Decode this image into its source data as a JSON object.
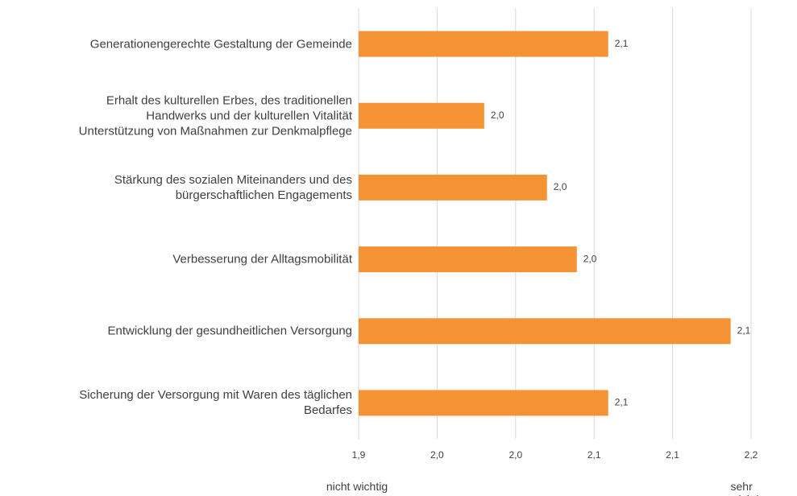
{
  "chart_data": {
    "type": "hbar",
    "categories": [
      "Generationengerechte Gestaltung der Gemeinde",
      "Erhalt des kulturellen Erbes, des traditionellen\nHandwerks und der kulturellen Vitalität\nUnterstützung von Maßnahmen zur Denkmalpflege",
      "Stärkung des sozialen Miteinanders und des\nbürgerschaftlichen Engagements",
      "Verbesserung der Alltagsmobilität",
      "Entwicklung der gesundheitlichen Versorgung",
      "Sicherung der Versorgung mit Waren des täglichen\nBedarfes"
    ],
    "values": [
      2.059,
      1.98,
      2.02,
      2.039,
      2.137,
      2.059
    ],
    "value_labels": [
      "2,1",
      "2,0",
      "2,0",
      "2,0",
      "2,1",
      "2,1"
    ],
    "color": "#f59233",
    "xlim": [
      1.9,
      2.15
    ],
    "xticks": [
      {
        "value": 1.9,
        "label": "1,9"
      },
      {
        "value": 1.95,
        "label": "2,0"
      },
      {
        "value": 2.0,
        "label": "2,0"
      },
      {
        "value": 2.05,
        "label": "2,1"
      },
      {
        "value": 2.1,
        "label": "2,1"
      },
      {
        "value": 2.15,
        "label": "2,2"
      }
    ],
    "grid": true,
    "annotations": [
      "nicht wichtig",
      "sehr wichtig"
    ]
  }
}
